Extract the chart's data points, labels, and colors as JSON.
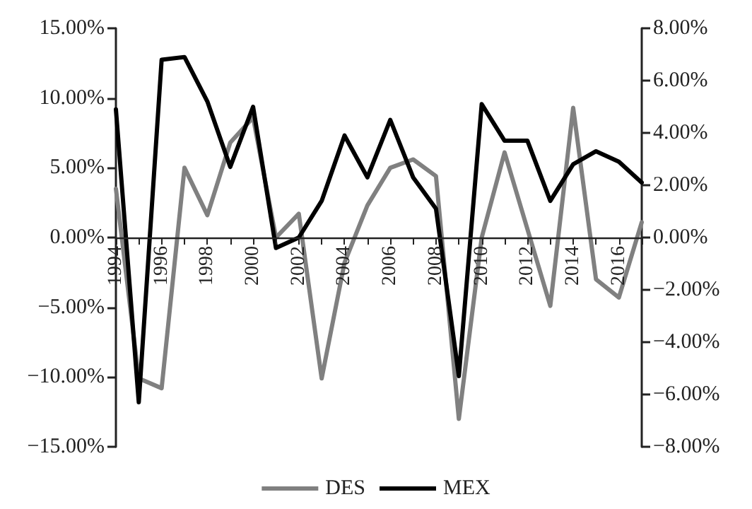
{
  "chart_data": {
    "type": "line",
    "categories": [
      "1994",
      null,
      "1996",
      null,
      "1998",
      null,
      "2000",
      null,
      "2002",
      null,
      "2004",
      null,
      "2006",
      null,
      "2008",
      null,
      "2010",
      null,
      "2012",
      null,
      "2014",
      null,
      "2016",
      null
    ],
    "series": [
      {
        "name": "DES",
        "color": "#808080",
        "values": [
          3.5,
          -10.1,
          -10.8,
          5.0,
          1.6,
          6.8,
          8.6,
          0.0,
          1.7,
          -10.1,
          -1.8,
          2.3,
          5.0,
          5.6,
          4.4,
          -13.0,
          0.0,
          6.1,
          0.6,
          -4.9,
          9.3,
          -3.0,
          -4.3,
          1.1
        ]
      },
      {
        "name": "MEX",
        "color": "#000000",
        "axis": "y2",
        "values": [
          4.9,
          -6.3,
          6.8,
          6.9,
          5.2,
          2.7,
          5.0,
          -0.4,
          0.0,
          1.4,
          3.9,
          2.3,
          4.5,
          2.3,
          1.1,
          -5.3,
          5.1,
          3.7,
          3.7,
          1.4,
          2.8,
          3.3,
          2.9,
          2.1
        ]
      }
    ],
    "ylim": [
      -15,
      15
    ],
    "yticks": [
      {
        "value": -15,
        "label": "−15.00%"
      },
      {
        "value": -10,
        "label": "−10.00%"
      },
      {
        "value": -5,
        "label": "−5.00%"
      },
      {
        "value": 0,
        "label": "0.00%"
      },
      {
        "value": 5,
        "label": "5.00%"
      },
      {
        "value": 10,
        "label": "10.00%"
      },
      {
        "value": 15,
        "label": "15.00%"
      }
    ],
    "y2lim": [
      -8,
      8
    ],
    "y2ticks": [
      {
        "value": -8,
        "label": "−8.00%"
      },
      {
        "value": -6,
        "label": "−6.00%"
      },
      {
        "value": -4,
        "label": "−4.00%"
      },
      {
        "value": -2,
        "label": "−2.00%"
      },
      {
        "value": 0,
        "label": "0.00%"
      },
      {
        "value": 2,
        "label": "2.00%"
      },
      {
        "value": 4,
        "label": "4.00%"
      },
      {
        "value": 6,
        "label": "6.00%"
      },
      {
        "value": 8,
        "label": "8.00%"
      }
    ],
    "legend": "bottom",
    "grid": false,
    "marker": "none",
    "line_style": "solid"
  }
}
